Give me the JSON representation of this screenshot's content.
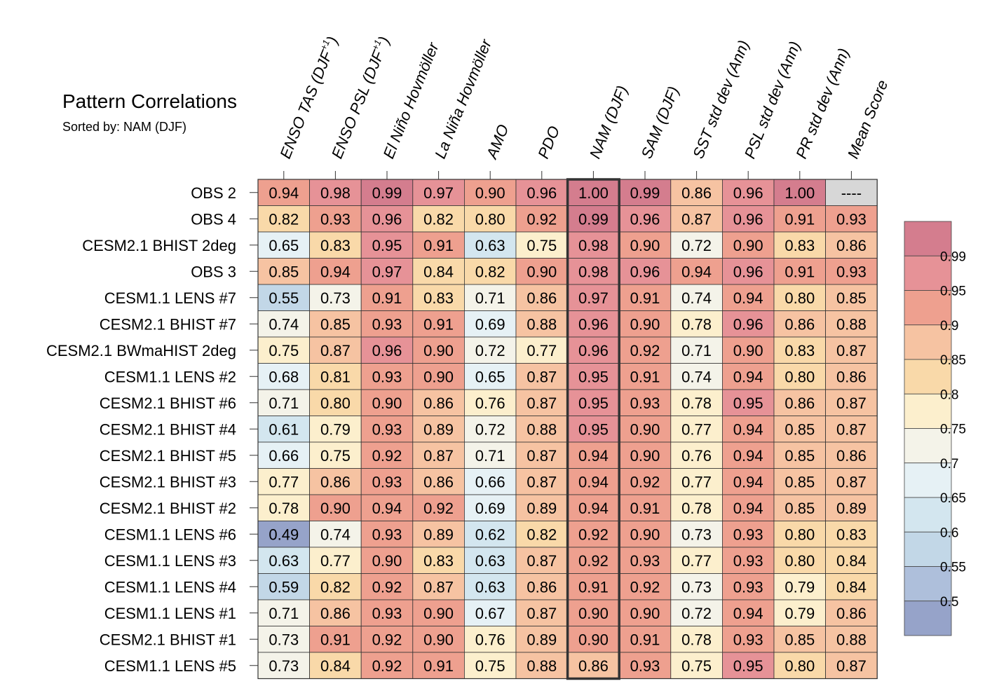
{
  "chart_data": {
    "type": "heatmap",
    "title": "Pattern Correlations",
    "subtitle": "Sorted by: NAM (DJF)",
    "highlight_column": "NAM (DJF)",
    "columns": [
      {
        "label": "ENSO TAS (DJF",
        "sup": "+1",
        "end": ")"
      },
      {
        "label": "ENSO PSL (DJF",
        "sup": "+1",
        "end": ")"
      },
      {
        "label": "El Niño Hovmöller"
      },
      {
        "label": "La Niña Hovmöller"
      },
      {
        "label": "AMO"
      },
      {
        "label": "PDO"
      },
      {
        "label": "NAM (DJF)"
      },
      {
        "label": "SAM (DJF)"
      },
      {
        "label": "SST std dev (Ann)"
      },
      {
        "label": "PSL std dev (Ann)"
      },
      {
        "label": "PR std dev (Ann)"
      },
      {
        "label": "Mean Score"
      }
    ],
    "rows": [
      "OBS 2",
      "OBS 4",
      "CESM2.1 BHIST 2deg",
      "OBS 3",
      "CESM1.1 LENS #7",
      "CESM2.1 BHIST #7",
      "CESM2.1 BWmaHIST 2deg",
      "CESM1.1 LENS #2",
      "CESM2.1 BHIST #6",
      "CESM2.1 BHIST #4",
      "CESM2.1 BHIST #5",
      "CESM2.1 BHIST #3",
      "CESM2.1 BHIST #2",
      "CESM1.1 LENS #6",
      "CESM1.1 LENS #3",
      "CESM1.1 LENS #4",
      "CESM1.1 LENS #1",
      "CESM2.1 BHIST #1",
      "CESM1.1 LENS #5"
    ],
    "values": [
      [
        "0.94",
        "0.98",
        "0.99",
        "0.97",
        "0.90",
        "0.96",
        "1.00",
        "0.99",
        "0.86",
        "0.96",
        "1.00",
        "----"
      ],
      [
        "0.82",
        "0.93",
        "0.96",
        "0.82",
        "0.80",
        "0.92",
        "0.99",
        "0.96",
        "0.87",
        "0.96",
        "0.91",
        "0.93"
      ],
      [
        "0.65",
        "0.83",
        "0.95",
        "0.91",
        "0.63",
        "0.75",
        "0.98",
        "0.90",
        "0.72",
        "0.90",
        "0.83",
        "0.86"
      ],
      [
        "0.85",
        "0.94",
        "0.97",
        "0.84",
        "0.82",
        "0.90",
        "0.98",
        "0.96",
        "0.94",
        "0.96",
        "0.91",
        "0.93"
      ],
      [
        "0.55",
        "0.73",
        "0.91",
        "0.83",
        "0.71",
        "0.86",
        "0.97",
        "0.91",
        "0.74",
        "0.94",
        "0.80",
        "0.85"
      ],
      [
        "0.74",
        "0.85",
        "0.93",
        "0.91",
        "0.69",
        "0.88",
        "0.96",
        "0.90",
        "0.78",
        "0.96",
        "0.86",
        "0.88"
      ],
      [
        "0.75",
        "0.87",
        "0.96",
        "0.90",
        "0.72",
        "0.77",
        "0.96",
        "0.92",
        "0.71",
        "0.90",
        "0.83",
        "0.87"
      ],
      [
        "0.68",
        "0.81",
        "0.93",
        "0.90",
        "0.65",
        "0.87",
        "0.95",
        "0.91",
        "0.74",
        "0.94",
        "0.80",
        "0.86"
      ],
      [
        "0.71",
        "0.80",
        "0.90",
        "0.86",
        "0.76",
        "0.87",
        "0.95",
        "0.93",
        "0.78",
        "0.95",
        "0.86",
        "0.87"
      ],
      [
        "0.61",
        "0.79",
        "0.93",
        "0.89",
        "0.72",
        "0.88",
        "0.95",
        "0.90",
        "0.77",
        "0.94",
        "0.85",
        "0.87"
      ],
      [
        "0.66",
        "0.75",
        "0.92",
        "0.87",
        "0.71",
        "0.87",
        "0.94",
        "0.90",
        "0.76",
        "0.94",
        "0.85",
        "0.86"
      ],
      [
        "0.77",
        "0.86",
        "0.93",
        "0.86",
        "0.66",
        "0.87",
        "0.94",
        "0.92",
        "0.77",
        "0.94",
        "0.85",
        "0.87"
      ],
      [
        "0.78",
        "0.90",
        "0.94",
        "0.92",
        "0.69",
        "0.89",
        "0.94",
        "0.91",
        "0.78",
        "0.94",
        "0.85",
        "0.89"
      ],
      [
        "0.49",
        "0.74",
        "0.93",
        "0.89",
        "0.62",
        "0.82",
        "0.92",
        "0.90",
        "0.73",
        "0.93",
        "0.80",
        "0.83"
      ],
      [
        "0.63",
        "0.77",
        "0.90",
        "0.83",
        "0.63",
        "0.87",
        "0.92",
        "0.93",
        "0.77",
        "0.93",
        "0.80",
        "0.84"
      ],
      [
        "0.59",
        "0.82",
        "0.92",
        "0.87",
        "0.63",
        "0.86",
        "0.91",
        "0.92",
        "0.73",
        "0.93",
        "0.79",
        "0.84"
      ],
      [
        "0.71",
        "0.86",
        "0.93",
        "0.90",
        "0.67",
        "0.87",
        "0.90",
        "0.90",
        "0.72",
        "0.94",
        "0.79",
        "0.86"
      ],
      [
        "0.73",
        "0.91",
        "0.92",
        "0.90",
        "0.76",
        "0.89",
        "0.90",
        "0.91",
        "0.78",
        "0.93",
        "0.85",
        "0.88"
      ],
      [
        "0.73",
        "0.84",
        "0.92",
        "0.91",
        "0.75",
        "0.88",
        "0.86",
        "0.93",
        "0.75",
        "0.95",
        "0.80",
        "0.87"
      ]
    ],
    "colorbar": {
      "labels": [
        "0.99",
        "0.95",
        "0.9",
        "0.85",
        "0.8",
        "0.75",
        "0.7",
        "0.65",
        "0.6",
        "0.55",
        "0.5"
      ],
      "thresholds": [
        0.5,
        0.55,
        0.6,
        0.65,
        0.7,
        0.75,
        0.8,
        0.85,
        0.9,
        0.95,
        0.99
      ],
      "colors": [
        "#96a3c9",
        "#aebfdb",
        "#c2d7e7",
        "#d3e6ef",
        "#e6f1f5",
        "#f4f3e9",
        "#fcefcd",
        "#f9d9a9",
        "#f6c3a2",
        "#eea08f",
        "#e69297",
        "#d47d8e"
      ],
      "missing_color": "#d7d7d7"
    }
  }
}
